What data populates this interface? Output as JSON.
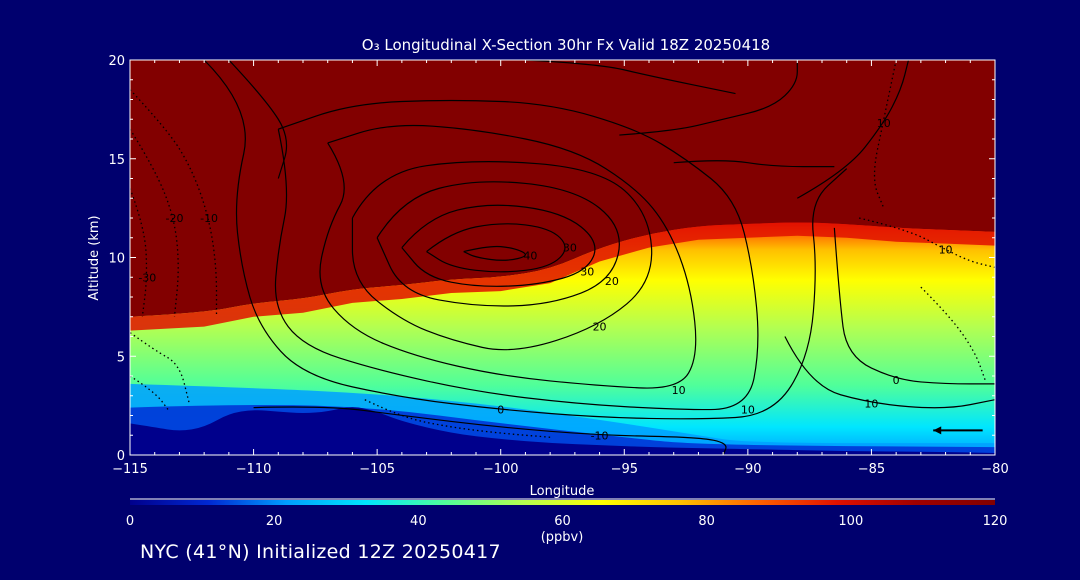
{
  "title": "O₃ Longitudinal X-Section 30hr  Fx Valid 18Z 20250418",
  "footer": "NYC (41°N) Initialized 12Z 20250417",
  "chart_data": {
    "type": "heatmap",
    "title": "O₃ Longitudinal X-Section 30hr  Fx Valid 18Z 20250418",
    "xlabel": "Longitude",
    "ylabel": "Altitude (km)",
    "xlim": [
      -115,
      -80
    ],
    "ylim": [
      0,
      20
    ],
    "xticks": [
      -115,
      -110,
      -105,
      -100,
      -95,
      -90,
      -85,
      -80
    ],
    "xtick_labels": [
      "−115",
      "−110",
      "−105",
      "−100",
      "−95",
      "−90",
      "−85",
      "−80"
    ],
    "yticks": [
      0,
      5,
      10,
      15,
      20
    ],
    "ytick_labels": [
      "0",
      "5",
      "10",
      "15",
      "20"
    ],
    "colorbar": {
      "range": [
        0,
        120
      ],
      "ticks": [
        0,
        20,
        40,
        60,
        80,
        100,
        120
      ],
      "tick_labels": [
        "0",
        "20",
        "40",
        "60",
        "80",
        "100",
        "120"
      ],
      "units": "(ppbv)",
      "colors": [
        "#00008c",
        "#0028d2",
        "#00a0ff",
        "#00e6ff",
        "#50ff9a",
        "#b4ff50",
        "#ffff00",
        "#ffc000",
        "#ff6000",
        "#e01000",
        "#a00000",
        "#820000"
      ]
    },
    "background_color": "#820000",
    "tropopause_km": [
      [
        -115,
        7.0
      ],
      [
        -112,
        7.2
      ],
      [
        -110,
        7.7
      ],
      [
        -108,
        7.9
      ],
      [
        -106,
        8.4
      ],
      [
        -104,
        8.6
      ],
      [
        -102,
        8.9
      ],
      [
        -100,
        9.0
      ],
      [
        -98,
        9.4
      ],
      [
        -96,
        10.5
      ],
      [
        -94,
        11.2
      ],
      [
        -92,
        11.6
      ],
      [
        -90,
        11.7
      ],
      [
        -88,
        11.8
      ],
      [
        -86,
        11.7
      ],
      [
        -84,
        11.5
      ],
      [
        -82,
        11.4
      ],
      [
        -80,
        11.3
      ]
    ],
    "terrain_km": [
      [
        -115,
        1.6
      ],
      [
        -114,
        1.4
      ],
      [
        -113,
        1.2
      ],
      [
        -112,
        1.4
      ],
      [
        -111,
        2.1
      ],
      [
        -110,
        2.3
      ],
      [
        -109,
        2.2
      ],
      [
        -108,
        2.1
      ],
      [
        -107,
        2.2
      ],
      [
        -106,
        2.5
      ],
      [
        -105,
        2.2
      ],
      [
        -104,
        1.7
      ],
      [
        -102,
        1.1
      ],
      [
        -100,
        0.8
      ],
      [
        -98,
        0.6
      ],
      [
        -96,
        0.5
      ],
      [
        -94,
        0.4
      ],
      [
        -92,
        0.35
      ],
      [
        -90,
        0.3
      ],
      [
        -86,
        0.2
      ],
      [
        -82,
        0.15
      ],
      [
        -80,
        0.1
      ]
    ],
    "contours": [
      {
        "level": "40",
        "style": "solid",
        "points": [
          [
            -101.5,
            10.3
          ],
          [
            -100.5,
            10.6
          ],
          [
            -99.5,
            10.5
          ],
          [
            -98.8,
            10.1
          ],
          [
            -99.8,
            9.8
          ],
          [
            -101,
            10.0
          ],
          [
            -101.5,
            10.3
          ]
        ]
      },
      {
        "level": "30",
        "style": "solid",
        "points": [
          [
            -103,
            10.3
          ],
          [
            -102,
            11.3
          ],
          [
            -100,
            11.8
          ],
          [
            -98,
            11.5
          ],
          [
            -97.2,
            10.5
          ],
          [
            -98,
            9.5
          ],
          [
            -100,
            9.2
          ],
          [
            -102,
            9.5
          ],
          [
            -103,
            10.3
          ]
        ]
      },
      {
        "level": "30",
        "style": "solid",
        "points": [
          [
            -104,
            10.5
          ],
          [
            -103,
            12.0
          ],
          [
            -100.5,
            12.8
          ],
          [
            -97.5,
            12.3
          ],
          [
            -96,
            10.8
          ],
          [
            -96.5,
            9.3
          ],
          [
            -98.5,
            8.6
          ],
          [
            -101,
            8.5
          ],
          [
            -103,
            9.0
          ],
          [
            -104,
            10.5
          ]
        ]
      },
      {
        "level": "20",
        "style": "solid",
        "points": [
          [
            -105,
            11.0
          ],
          [
            -104,
            13.0
          ],
          [
            -101,
            14.0
          ],
          [
            -97,
            13.5
          ],
          [
            -95,
            11.5
          ],
          [
            -95.5,
            8.8
          ],
          [
            -98,
            7.6
          ],
          [
            -101,
            7.5
          ],
          [
            -104,
            8.2
          ],
          [
            -105,
            11.0
          ]
        ]
      },
      {
        "level": "20",
        "style": "solid",
        "points": [
          [
            -106,
            12.0
          ],
          [
            -105,
            14.3
          ],
          [
            -101,
            15.0
          ],
          [
            -96,
            14.5
          ],
          [
            -94,
            12.3
          ],
          [
            -93.8,
            8.8
          ],
          [
            -96,
            6.5
          ],
          [
            -99.5,
            5.1
          ],
          [
            -102,
            5.8
          ],
          [
            -104,
            6.8
          ],
          [
            -106,
            8.8
          ],
          [
            -106,
            12.0
          ]
        ]
      },
      {
        "level": "10",
        "style": "solid",
        "points": [
          [
            -107,
            15.8
          ],
          [
            -106,
            13.8
          ],
          [
            -107,
            11.5
          ],
          [
            -107.5,
            8.5
          ],
          [
            -106,
            6.3
          ],
          [
            -103.5,
            5.0
          ],
          [
            -100,
            4.0
          ],
          [
            -96,
            3.5
          ],
          [
            -92.8,
            3.3
          ],
          [
            -92,
            5.0
          ],
          [
            -92.3,
            8.5
          ],
          [
            -93.2,
            11.5
          ],
          [
            -94.5,
            13.5
          ],
          [
            -97,
            15.5
          ],
          [
            -101,
            16.5
          ],
          [
            -104.5,
            16.8
          ],
          [
            -107,
            15.8
          ]
        ]
      },
      {
        "level": "10",
        "style": "solid",
        "points": [
          [
            -109,
            16.5
          ],
          [
            -108.5,
            13.5
          ],
          [
            -109,
            10.5
          ],
          [
            -109.2,
            7.5
          ],
          [
            -108,
            5.5
          ],
          [
            -105,
            4.3
          ],
          [
            -101,
            3.2
          ],
          [
            -97,
            2.6
          ],
          [
            -93,
            2.3
          ],
          [
            -90,
            2.3
          ],
          [
            -89.5,
            5.5
          ],
          [
            -89.8,
            9.5
          ],
          [
            -90.5,
            13.0
          ],
          [
            -92.5,
            15.0
          ],
          [
            -94.5,
            16.5
          ],
          [
            -98,
            17.8
          ],
          [
            -102,
            18.0
          ],
          [
            -106,
            17.8
          ],
          [
            -109,
            16.5
          ]
        ]
      },
      {
        "level": "0",
        "style": "solid",
        "points": [
          [
            -112,
            20
          ],
          [
            -110,
            17.5
          ],
          [
            -110.8,
            13.0
          ],
          [
            -110.5,
            9.5
          ],
          [
            -109.8,
            6.5
          ],
          [
            -108,
            4.0
          ],
          [
            -104,
            2.9
          ],
          [
            -100,
            2.3
          ],
          [
            -96,
            1.9
          ],
          [
            -92,
            1.8
          ],
          [
            -89,
            2.0
          ],
          [
            -87.5,
            5.0
          ],
          [
            -87.2,
            9.5
          ],
          [
            -87.5,
            12.8
          ],
          [
            -86,
            14.5
          ]
        ]
      },
      {
        "level": "",
        "style": "solid",
        "points": [
          [
            -111,
            20
          ],
          [
            -109.5,
            18.0
          ],
          [
            -108.5,
            16.0
          ],
          [
            -109,
            14.0
          ]
        ]
      },
      {
        "level": "",
        "style": "solid",
        "points": [
          [
            -95.2,
            16.2
          ],
          [
            -93,
            16.4
          ],
          [
            -91,
            17.0
          ],
          [
            -89,
            17.6
          ],
          [
            -88,
            18.8
          ],
          [
            -88,
            20
          ]
        ]
      },
      {
        "level": "",
        "style": "solid",
        "points": [
          [
            -93,
            14.8
          ],
          [
            -91,
            15.0
          ],
          [
            -89,
            14.6
          ],
          [
            -86.5,
            14.6
          ]
        ]
      },
      {
        "level": "",
        "style": "solid",
        "points": [
          [
            -99,
            20
          ],
          [
            -96,
            19.8
          ],
          [
            -94,
            19.2
          ],
          [
            -90.5,
            18.3
          ]
        ]
      },
      {
        "level": "10",
        "style": "solid",
        "points": [
          [
            -88,
            13.0
          ],
          [
            -86,
            14.4
          ],
          [
            -84.5,
            16.8
          ],
          [
            -83.8,
            18.5
          ],
          [
            -83.5,
            20
          ]
        ]
      },
      {
        "level": "0",
        "style": "solid",
        "points": [
          [
            -86.5,
            11.5
          ],
          [
            -86.3,
            8.0
          ],
          [
            -86,
            5.0
          ],
          [
            -84,
            3.8
          ],
          [
            -82,
            3.6
          ],
          [
            -80,
            3.6
          ]
        ]
      },
      {
        "level": "10",
        "style": "solid",
        "points": [
          [
            -88.5,
            6.0
          ],
          [
            -87.5,
            3.5
          ],
          [
            -85,
            2.6
          ],
          [
            -82,
            2.3
          ],
          [
            -80,
            2.8
          ]
        ]
      },
      {
        "level": "-10",
        "style": "solid",
        "points": [
          [
            -110,
            2.4
          ],
          [
            -107,
            2.5
          ],
          [
            -104,
            2.0
          ],
          [
            -100,
            1.4
          ],
          [
            -96,
            1.0
          ],
          [
            -92,
            0.9
          ],
          [
            -90.8,
            0.6
          ],
          [
            -91,
            0.0
          ]
        ]
      },
      {
        "level": "-10",
        "style": "dotted",
        "points": [
          [
            -115,
            18.5
          ],
          [
            -113.5,
            16.5
          ],
          [
            -112.5,
            14.5
          ],
          [
            -111.8,
            12.0
          ],
          [
            -111.5,
            9.5
          ],
          [
            -111.5,
            7.0
          ]
        ]
      },
      {
        "level": "-20",
        "style": "dotted",
        "points": [
          [
            -115,
            16.5
          ],
          [
            -114,
            14.5
          ],
          [
            -113.2,
            12.0
          ],
          [
            -113,
            9.5
          ],
          [
            -113.2,
            7.0
          ]
        ]
      },
      {
        "level": "-30",
        "style": "dotted",
        "points": [
          [
            -115,
            13.5
          ],
          [
            -114.4,
            11.5
          ],
          [
            -114.3,
            9.0
          ],
          [
            -114.5,
            7.0
          ]
        ]
      },
      {
        "level": "",
        "style": "dotted",
        "points": [
          [
            -115,
            6.2
          ],
          [
            -114,
            5.3
          ],
          [
            -113,
            4.6
          ],
          [
            -112.6,
            2.6
          ]
        ]
      },
      {
        "level": "",
        "style": "dotted",
        "points": [
          [
            -115,
            4.0
          ],
          [
            -114,
            3.2
          ],
          [
            -113.4,
            2.2
          ]
        ]
      },
      {
        "level": "",
        "style": "dotted",
        "points": [
          [
            -105.5,
            2.8
          ],
          [
            -104,
            1.9
          ],
          [
            -102,
            1.4
          ],
          [
            -100,
            1.1
          ],
          [
            -98,
            0.9
          ]
        ]
      },
      {
        "level": "10",
        "style": "dotted",
        "points": [
          [
            -85.5,
            12.0
          ],
          [
            -83.5,
            11.4
          ],
          [
            -82,
            10.4
          ],
          [
            -81,
            9.8
          ],
          [
            -80,
            9.5
          ]
        ]
      },
      {
        "level": "",
        "style": "dotted",
        "points": [
          [
            -84,
            20
          ],
          [
            -84.5,
            17.0
          ],
          [
            -85,
            14.0
          ],
          [
            -84.5,
            12.5
          ]
        ]
      },
      {
        "level": "",
        "style": "dotted",
        "points": [
          [
            -83,
            8.5
          ],
          [
            -81.8,
            7.0
          ],
          [
            -80.8,
            5.2
          ],
          [
            -80.4,
            3.8
          ]
        ]
      }
    ],
    "arrow": [
      [
        -80.5,
        1.25
      ],
      [
        -82.5,
        1.25
      ]
    ]
  }
}
